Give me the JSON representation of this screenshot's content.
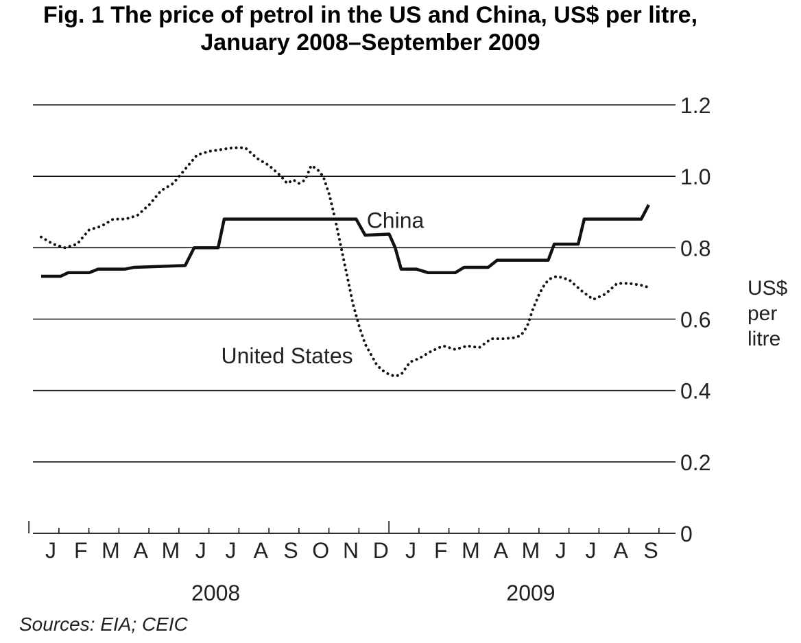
{
  "chart_data": {
    "type": "line",
    "title_line1": "Fig. 1  The price of petrol in the US and China, US$ per litre,",
    "title_line2": "January 2008–September 2009",
    "ylabel_lines": [
      "US$",
      "per",
      "litre"
    ],
    "source": "Sources: EIA; CEIC",
    "ylim": [
      0,
      1.2
    ],
    "y_ticks": [
      "0",
      "0.2",
      "0.4",
      "0.6",
      "0.8",
      "1.0",
      "1.2"
    ],
    "y_tick_values": [
      0,
      0.2,
      0.4,
      0.6,
      0.8,
      1.0,
      1.2
    ],
    "grid": true,
    "legend": "inline labels",
    "x_month_labels": [
      "J",
      "F",
      "M",
      "A",
      "M",
      "J",
      "J",
      "A",
      "S",
      "O",
      "N",
      "D",
      "J",
      "F",
      "M",
      "A",
      "M",
      "J",
      "J",
      "A",
      "S"
    ],
    "x_year_labels": [
      {
        "label": "2008",
        "month_index": 5.5
      },
      {
        "label": "2009",
        "month_index": 16
      }
    ],
    "series": [
      {
        "name": "China",
        "style": "solid",
        "x": [
          0,
          0.65,
          0.9,
          1.6,
          1.9,
          2.8,
          3.1,
          4.8,
          5.1,
          5.9,
          6.1,
          7.0,
          8.0,
          9.0,
          10.5,
          10.8,
          11.6,
          11.8,
          12.0,
          12.5,
          12.9,
          13.2,
          13.8,
          14.1,
          14.9,
          15.2,
          15.9,
          16.1,
          16.5,
          16.9,
          17.1,
          17.9,
          18.1,
          19.0,
          20.0,
          20.25
        ],
        "values": [
          0.72,
          0.72,
          0.73,
          0.73,
          0.74,
          0.74,
          0.745,
          0.75,
          0.8,
          0.8,
          0.88,
          0.88,
          0.88,
          0.88,
          0.88,
          0.835,
          0.838,
          0.8,
          0.74,
          0.74,
          0.73,
          0.73,
          0.73,
          0.745,
          0.745,
          0.765,
          0.765,
          0.765,
          0.765,
          0.765,
          0.81,
          0.81,
          0.88,
          0.88,
          0.88,
          0.92
        ]
      },
      {
        "name": "United States",
        "style": "dotted",
        "x": [
          0,
          0.4,
          0.8,
          1.2,
          1.6,
          2.0,
          2.4,
          2.8,
          3.2,
          3.6,
          4.0,
          4.4,
          4.8,
          5.2,
          5.6,
          6.0,
          6.4,
          6.8,
          7.2,
          7.6,
          8.0,
          8.2,
          8.4,
          8.6,
          8.8,
          9.0,
          9.2,
          9.4,
          9.6,
          9.8,
          10.0,
          10.2,
          10.4,
          10.6,
          10.8,
          11.0,
          11.2,
          11.4,
          11.6,
          11.8,
          12.0,
          12.3,
          12.6,
          13.0,
          13.4,
          13.8,
          14.2,
          14.6,
          15.0,
          15.4,
          15.8,
          16.0,
          16.2,
          16.4,
          16.6,
          16.8,
          17.0,
          17.2,
          17.6,
          18.0,
          18.4,
          18.8,
          19.2,
          19.6,
          20.0,
          20.2
        ],
        "values": [
          0.83,
          0.81,
          0.8,
          0.81,
          0.85,
          0.86,
          0.88,
          0.88,
          0.89,
          0.92,
          0.96,
          0.98,
          1.02,
          1.06,
          1.07,
          1.075,
          1.08,
          1.08,
          1.05,
          1.03,
          1.0,
          0.98,
          0.99,
          0.98,
          0.99,
          1.03,
          1.02,
          1.0,
          0.95,
          0.88,
          0.8,
          0.72,
          0.64,
          0.58,
          0.53,
          0.5,
          0.47,
          0.455,
          0.445,
          0.44,
          0.445,
          0.48,
          0.49,
          0.51,
          0.525,
          0.515,
          0.525,
          0.52,
          0.545,
          0.545,
          0.548,
          0.555,
          0.58,
          0.63,
          0.67,
          0.7,
          0.715,
          0.72,
          0.71,
          0.68,
          0.655,
          0.67,
          0.7,
          0.7,
          0.695,
          0.69
        ]
      }
    ],
    "annotations": [
      {
        "text": "China",
        "x": 10.85,
        "y": 0.875
      },
      {
        "text": "United States",
        "x": 6.0,
        "y": 0.495
      }
    ]
  }
}
